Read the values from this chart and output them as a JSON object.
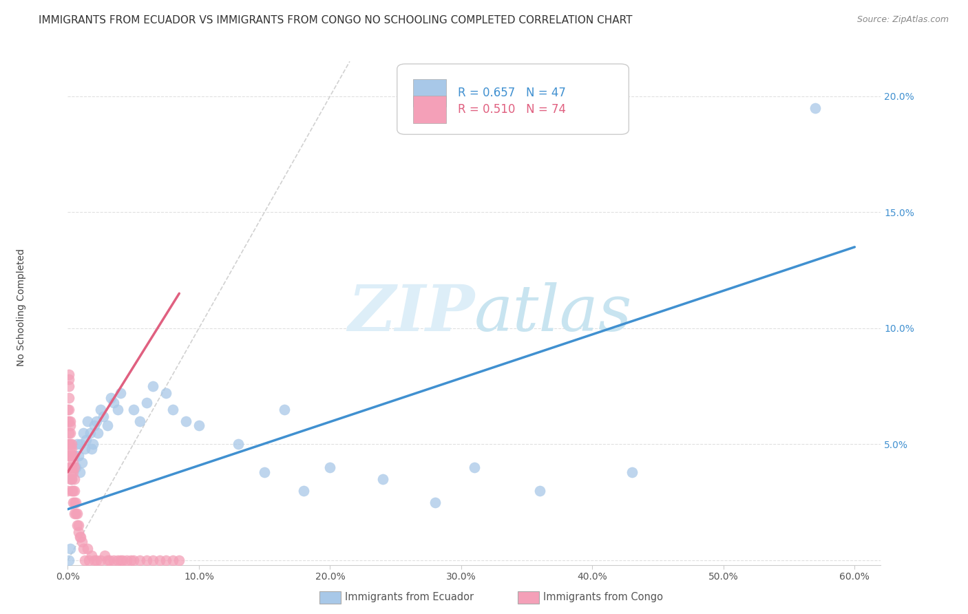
{
  "title": "IMMIGRANTS FROM ECUADOR VS IMMIGRANTS FROM CONGO NO SCHOOLING COMPLETED CORRELATION CHART",
  "source": "Source: ZipAtlas.com",
  "ylabel": "No Schooling Completed",
  "legend_label1": "Immigrants from Ecuador",
  "legend_label2": "Immigrants from Congo",
  "r1": "0.657",
  "n1": "47",
  "r2": "0.510",
  "n2": "74",
  "color_ecuador": "#a8c8e8",
  "color_congo": "#f4a0b8",
  "color_line_ecuador": "#4090d0",
  "color_line_congo": "#e06080",
  "xlim": [
    0.0,
    0.62
  ],
  "ylim": [
    -0.002,
    0.215
  ],
  "xticks": [
    0.0,
    0.1,
    0.2,
    0.3,
    0.4,
    0.5,
    0.6
  ],
  "yticks": [
    0.0,
    0.05,
    0.1,
    0.15,
    0.2
  ],
  "xtick_labels": [
    "0.0%",
    "10.0%",
    "20.0%",
    "30.0%",
    "40.0%",
    "50.0%",
    "60.0%"
  ],
  "ytick_labels": [
    "",
    "5.0%",
    "10.0%",
    "15.0%",
    "20.0%"
  ],
  "watermark_zip": "ZIP",
  "watermark_atlas": "atlas",
  "background_color": "#ffffff",
  "grid_color": "#dddddd",
  "title_fontsize": 11,
  "axis_label_fontsize": 10,
  "tick_fontsize": 10,
  "legend_fontsize": 12,
  "ecuador_x": [
    0.001,
    0.002,
    0.003,
    0.004,
    0.005,
    0.006,
    0.007,
    0.008,
    0.009,
    0.01,
    0.011,
    0.012,
    0.013,
    0.014,
    0.015,
    0.017,
    0.018,
    0.019,
    0.02,
    0.022,
    0.023,
    0.025,
    0.027,
    0.03,
    0.033,
    0.035,
    0.038,
    0.04,
    0.05,
    0.055,
    0.06,
    0.065,
    0.075,
    0.08,
    0.09,
    0.1,
    0.13,
    0.15,
    0.165,
    0.18,
    0.2,
    0.24,
    0.28,
    0.31,
    0.36,
    0.43,
    0.57
  ],
  "ecuador_y": [
    0.0,
    0.005,
    0.035,
    0.04,
    0.045,
    0.04,
    0.05,
    0.045,
    0.038,
    0.05,
    0.042,
    0.055,
    0.048,
    0.052,
    0.06,
    0.055,
    0.048,
    0.05,
    0.058,
    0.06,
    0.055,
    0.065,
    0.062,
    0.058,
    0.07,
    0.068,
    0.065,
    0.072,
    0.065,
    0.06,
    0.068,
    0.075,
    0.072,
    0.065,
    0.06,
    0.058,
    0.05,
    0.038,
    0.065,
    0.03,
    0.04,
    0.035,
    0.025,
    0.04,
    0.03,
    0.038,
    0.195
  ],
  "congo_x": [
    0.0,
    0.0,
    0.0,
    0.0,
    0.0,
    0.001,
    0.001,
    0.001,
    0.001,
    0.001,
    0.001,
    0.001,
    0.001,
    0.001,
    0.001,
    0.002,
    0.002,
    0.002,
    0.002,
    0.002,
    0.002,
    0.002,
    0.002,
    0.003,
    0.003,
    0.003,
    0.003,
    0.003,
    0.003,
    0.003,
    0.004,
    0.004,
    0.004,
    0.004,
    0.004,
    0.005,
    0.005,
    0.005,
    0.005,
    0.005,
    0.006,
    0.006,
    0.007,
    0.007,
    0.008,
    0.008,
    0.009,
    0.01,
    0.011,
    0.012,
    0.013,
    0.015,
    0.016,
    0.018,
    0.02,
    0.022,
    0.025,
    0.028,
    0.03,
    0.032,
    0.035,
    0.038,
    0.04,
    0.042,
    0.045,
    0.048,
    0.05,
    0.055,
    0.06,
    0.065,
    0.07,
    0.075,
    0.08,
    0.085
  ],
  "congo_y": [
    0.03,
    0.045,
    0.05,
    0.06,
    0.065,
    0.04,
    0.045,
    0.05,
    0.055,
    0.06,
    0.065,
    0.07,
    0.075,
    0.078,
    0.08,
    0.035,
    0.04,
    0.045,
    0.048,
    0.05,
    0.055,
    0.058,
    0.06,
    0.03,
    0.035,
    0.038,
    0.04,
    0.045,
    0.048,
    0.05,
    0.025,
    0.03,
    0.038,
    0.042,
    0.045,
    0.02,
    0.025,
    0.03,
    0.035,
    0.04,
    0.02,
    0.025,
    0.015,
    0.02,
    0.012,
    0.015,
    0.01,
    0.01,
    0.008,
    0.005,
    0.0,
    0.005,
    0.0,
    0.002,
    0.0,
    0.0,
    0.0,
    0.002,
    0.0,
    0.0,
    0.0,
    0.0,
    0.0,
    0.0,
    0.0,
    0.0,
    0.0,
    0.0,
    0.0,
    0.0,
    0.0,
    0.0,
    0.0,
    0.0
  ],
  "blue_line_x": [
    0.0,
    0.6
  ],
  "blue_line_y": [
    0.022,
    0.135
  ],
  "pink_line_x": [
    0.0,
    0.085
  ],
  "pink_line_y": [
    0.038,
    0.115
  ],
  "diag_line_x": [
    0.0,
    0.215
  ],
  "diag_line_y": [
    0.0,
    0.215
  ]
}
